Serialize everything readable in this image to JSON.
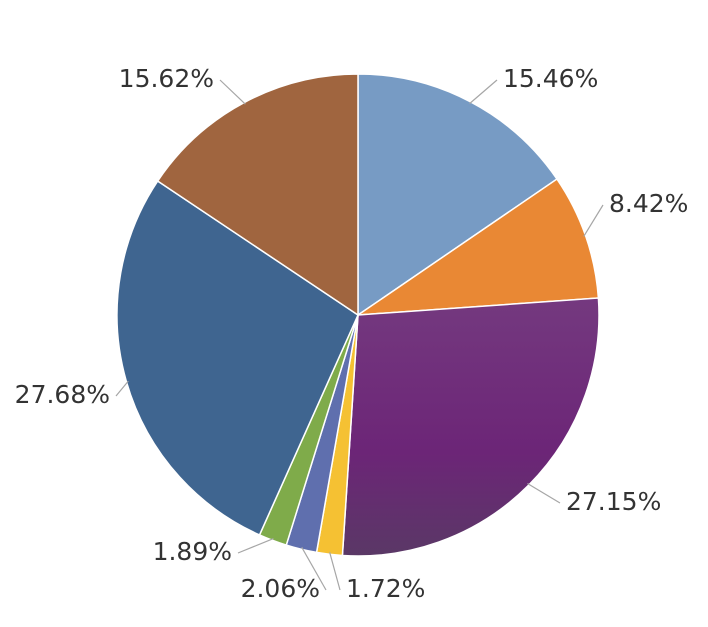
{
  "chart_data": {
    "type": "pie",
    "values": [
      15.46,
      8.42,
      27.15,
      1.72,
      2.06,
      1.89,
      27.68,
      15.62
    ],
    "value_labels": [
      "15.46%",
      "8.42%",
      "27.15%",
      "1.72%",
      "2.06%",
      "1.89%",
      "27.68%",
      "15.62%"
    ],
    "colors": [
      "#779bc4",
      "#e98834",
      "#6e2b7b",
      "#f5c133",
      "#5f6fae",
      "#7fab4a",
      "#3f6590",
      "#a0653f"
    ]
  }
}
